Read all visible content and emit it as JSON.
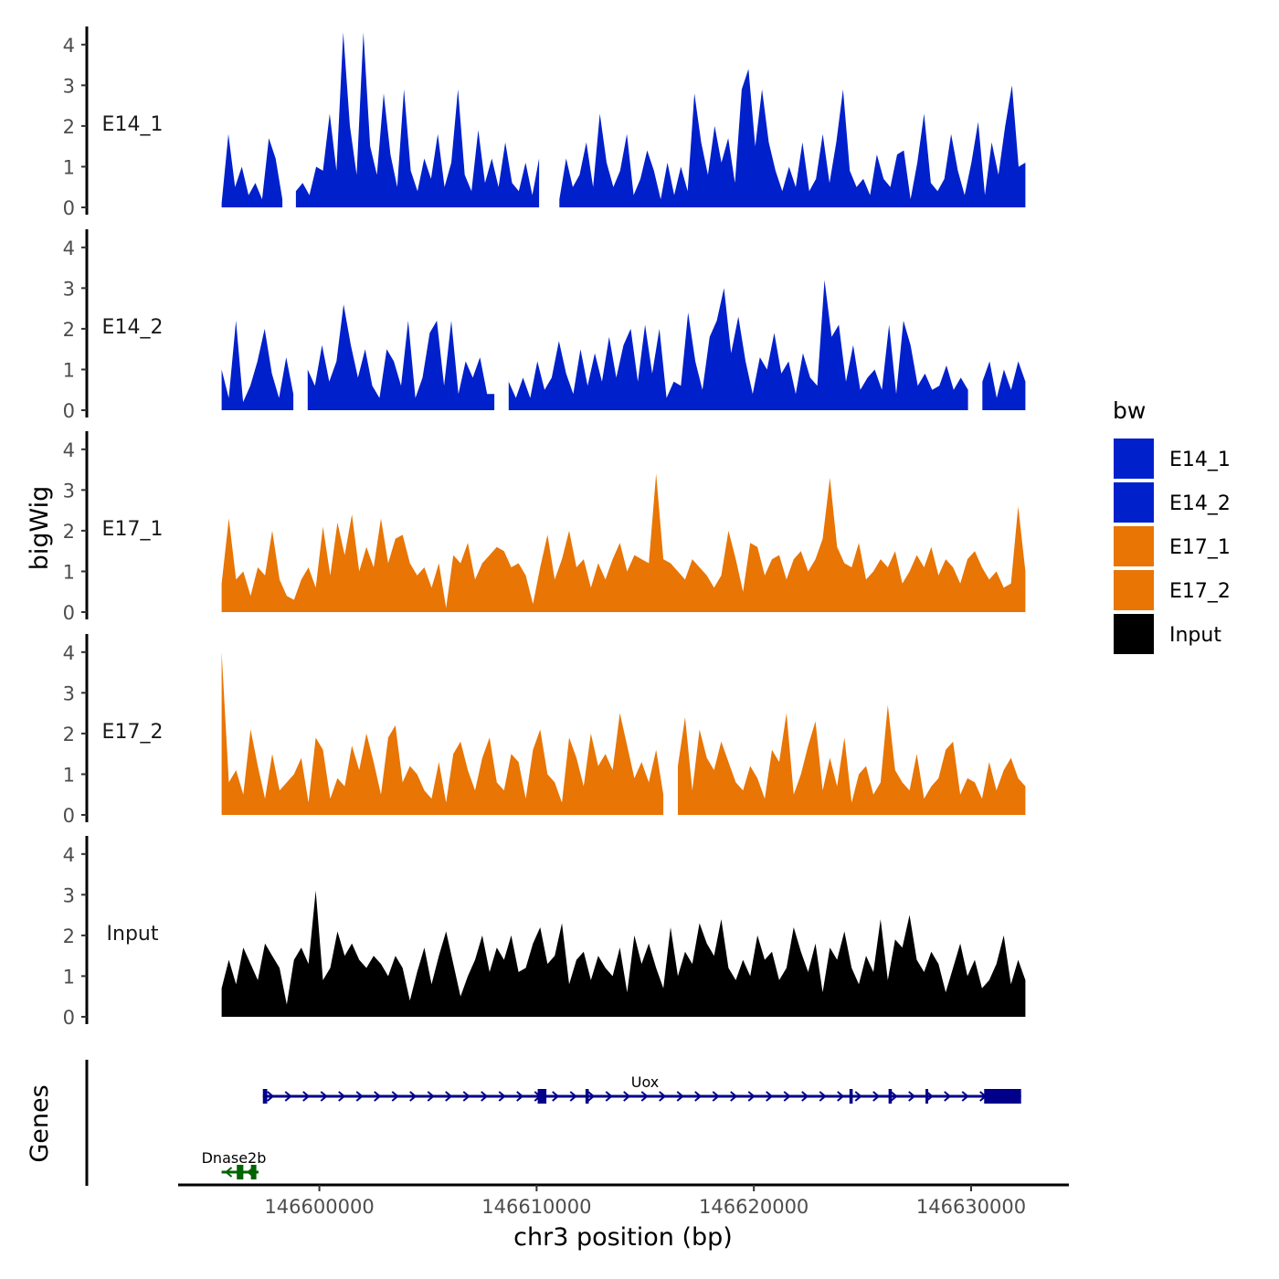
{
  "chart_data": {
    "type": "area",
    "chromosome": "chr3",
    "xlabel": "chr3 position (bp)",
    "ylabel": "bigWig",
    "genes_label": "Genes",
    "xlim": [
      146593500,
      146634500
    ],
    "ylim": [
      0,
      4.4
    ],
    "xticks": [
      146600000,
      146610000,
      146620000,
      146630000
    ],
    "xtick_labels": [
      "146600000",
      "146610000",
      "146620000",
      "146630000"
    ],
    "yticks": [
      0,
      1,
      2,
      3,
      4
    ],
    "ytick_labels": [
      "0",
      "1",
      "2",
      "3",
      "4"
    ],
    "data_range": [
      146595500,
      146632500
    ],
    "legend": {
      "title": "bw",
      "entries": [
        {
          "name": "E14_1",
          "color": "#0020CC"
        },
        {
          "name": "E14_2",
          "color": "#0020CC"
        },
        {
          "name": "E17_1",
          "color": "#E87504"
        },
        {
          "name": "E17_2",
          "color": "#E87504"
        },
        {
          "name": "Input",
          "color": "#000000"
        }
      ]
    },
    "series": [
      {
        "name": "E14_1",
        "color": "#0020CC",
        "values": [
          0.1,
          1.8,
          0.5,
          1.0,
          0.3,
          0.6,
          0.2,
          1.7,
          1.2,
          0.2,
          null,
          0.4,
          0.6,
          0.3,
          1.0,
          0.9,
          2.3,
          0.9,
          4.3,
          2.0,
          0.8,
          4.3,
          1.5,
          0.8,
          2.8,
          1.3,
          0.5,
          2.9,
          0.9,
          0.4,
          1.2,
          0.7,
          1.8,
          0.5,
          1.1,
          2.9,
          0.8,
          0.4,
          1.9,
          0.6,
          1.2,
          0.5,
          1.6,
          0.6,
          0.4,
          1.1,
          0.3,
          1.2,
          null,
          null,
          0.2,
          1.2,
          0.5,
          0.8,
          1.6,
          0.5,
          2.3,
          1.1,
          0.5,
          0.9,
          1.8,
          0.3,
          0.7,
          1.4,
          0.9,
          0.2,
          1.1,
          0.3,
          1.0,
          0.4,
          2.8,
          1.6,
          0.8,
          2.0,
          1.1,
          1.7,
          0.6,
          2.9,
          3.4,
          1.5,
          2.9,
          1.6,
          0.9,
          0.4,
          1.0,
          0.5,
          1.6,
          0.4,
          0.7,
          1.8,
          0.6,
          1.6,
          2.9,
          0.9,
          0.5,
          0.7,
          0.3,
          1.3,
          0.7,
          0.5,
          1.3,
          1.4,
          0.2,
          1.1,
          2.3,
          0.6,
          0.4,
          0.7,
          1.8,
          0.9,
          0.3,
          1.1,
          2.1,
          0.3,
          1.6,
          0.8,
          2.0,
          3.0,
          1.0,
          1.1
        ]
      },
      {
        "name": "E14_2",
        "color": "#0020CC",
        "values": [
          1.0,
          0.3,
          2.2,
          0.2,
          0.6,
          1.2,
          2.0,
          0.9,
          0.3,
          1.3,
          0.4,
          null,
          1.0,
          0.6,
          1.6,
          0.7,
          1.2,
          2.6,
          1.6,
          0.8,
          1.5,
          0.6,
          0.3,
          1.5,
          1.2,
          0.6,
          2.2,
          0.3,
          0.8,
          1.9,
          2.2,
          0.6,
          2.2,
          0.4,
          1.2,
          0.8,
          1.3,
          0.4,
          0.4,
          null,
          0.7,
          0.3,
          0.8,
          0.3,
          1.2,
          0.5,
          0.8,
          1.7,
          0.9,
          0.4,
          1.5,
          0.6,
          1.4,
          0.7,
          1.8,
          0.8,
          1.6,
          2.0,
          0.7,
          2.1,
          0.9,
          2.0,
          0.3,
          0.7,
          0.6,
          2.4,
          1.2,
          0.5,
          1.8,
          2.2,
          3.0,
          1.4,
          2.3,
          1.2,
          0.4,
          1.3,
          1.0,
          1.9,
          0.9,
          1.2,
          0.4,
          1.4,
          0.8,
          0.6,
          3.2,
          1.8,
          2.1,
          0.7,
          1.6,
          0.5,
          0.8,
          1.0,
          0.5,
          2.1,
          0.4,
          2.2,
          1.6,
          0.6,
          0.9,
          0.5,
          0.6,
          1.1,
          0.5,
          0.8,
          0.5,
          null,
          0.7,
          1.2,
          0.3,
          1.0,
          0.5,
          1.2,
          0.7
        ]
      },
      {
        "name": "E17_1",
        "color": "#E87504",
        "values": [
          0.7,
          2.3,
          0.8,
          1.0,
          0.4,
          1.1,
          0.9,
          2.0,
          0.8,
          0.4,
          0.3,
          0.8,
          1.1,
          0.6,
          2.1,
          0.9,
          2.2,
          1.4,
          2.4,
          1.0,
          1.6,
          1.1,
          2.3,
          1.2,
          1.8,
          1.9,
          1.2,
          0.9,
          1.1,
          0.6,
          1.2,
          0.1,
          1.4,
          1.2,
          1.7,
          0.8,
          1.2,
          1.4,
          1.6,
          1.5,
          1.1,
          1.2,
          0.9,
          0.2,
          1.1,
          1.9,
          0.8,
          1.3,
          2.0,
          1.1,
          1.3,
          0.6,
          1.2,
          0.8,
          1.3,
          1.7,
          1.0,
          1.4,
          1.3,
          1.2,
          3.4,
          1.3,
          1.2,
          1.0,
          0.8,
          1.3,
          1.1,
          0.9,
          0.6,
          0.9,
          2.0,
          1.3,
          0.5,
          1.7,
          1.6,
          0.9,
          1.3,
          1.4,
          0.8,
          1.3,
          1.5,
          1.0,
          1.3,
          1.8,
          3.3,
          1.6,
          1.2,
          1.1,
          1.7,
          0.8,
          1.0,
          1.3,
          1.1,
          1.5,
          0.7,
          1.0,
          1.4,
          1.1,
          1.6,
          0.9,
          1.3,
          1.1,
          0.7,
          1.3,
          1.5,
          1.1,
          0.8,
          1.0,
          0.6,
          0.7,
          2.6,
          1.0
        ]
      },
      {
        "name": "E17_2",
        "color": "#E87504",
        "values": [
          4.0,
          0.8,
          1.1,
          0.5,
          2.1,
          1.2,
          0.4,
          1.5,
          0.6,
          0.8,
          1.0,
          1.4,
          0.3,
          1.9,
          1.6,
          0.4,
          0.9,
          0.7,
          1.7,
          1.1,
          2.0,
          1.3,
          0.5,
          1.9,
          2.2,
          0.8,
          1.2,
          1.0,
          0.6,
          0.4,
          1.3,
          0.3,
          1.5,
          1.8,
          1.1,
          0.6,
          1.4,
          1.9,
          0.8,
          0.6,
          1.5,
          1.3,
          0.4,
          1.6,
          2.1,
          1.0,
          0.8,
          0.3,
          1.9,
          1.4,
          0.7,
          2.0,
          1.2,
          1.5,
          1.1,
          2.5,
          1.7,
          0.9,
          1.3,
          0.8,
          1.6,
          0.5,
          null,
          1.2,
          2.4,
          0.6,
          2.1,
          1.4,
          1.1,
          1.8,
          1.3,
          0.8,
          0.6,
          1.2,
          0.9,
          0.4,
          1.6,
          1.3,
          2.5,
          0.5,
          1.0,
          1.7,
          2.3,
          0.6,
          1.4,
          0.7,
          1.9,
          0.3,
          1.0,
          1.2,
          0.5,
          0.8,
          2.7,
          1.1,
          0.8,
          0.6,
          1.5,
          0.4,
          0.7,
          0.9,
          1.6,
          1.8,
          0.5,
          0.9,
          0.8,
          0.4,
          1.3,
          0.6,
          1.1,
          1.4,
          0.9,
          0.7
        ]
      },
      {
        "name": "Input",
        "color": "#000000",
        "values": [
          0.7,
          1.4,
          0.8,
          1.7,
          1.3,
          0.9,
          1.8,
          1.5,
          1.2,
          0.3,
          1.4,
          1.7,
          1.3,
          3.1,
          0.9,
          1.2,
          2.1,
          1.5,
          1.8,
          1.4,
          1.2,
          1.5,
          1.3,
          1.0,
          1.5,
          1.2,
          0.4,
          1.1,
          1.7,
          0.8,
          1.5,
          2.1,
          1.3,
          0.5,
          1.0,
          1.4,
          2.0,
          1.1,
          1.7,
          1.4,
          2.0,
          1.1,
          1.2,
          1.8,
          2.2,
          1.3,
          1.5,
          2.3,
          0.8,
          1.4,
          1.6,
          0.9,
          1.5,
          1.2,
          1.0,
          1.7,
          0.6,
          2.0,
          1.3,
          1.8,
          1.2,
          0.7,
          2.2,
          1.0,
          1.6,
          1.3,
          2.3,
          1.8,
          1.5,
          2.4,
          1.2,
          0.9,
          1.4,
          1.0,
          2.0,
          1.4,
          1.6,
          0.9,
          1.2,
          2.2,
          1.6,
          1.1,
          1.8,
          0.6,
          1.7,
          1.4,
          2.1,
          1.2,
          0.8,
          1.5,
          1.1,
          2.4,
          0.9,
          1.9,
          1.7,
          2.5,
          1.4,
          1.1,
          1.6,
          1.3,
          0.6,
          1.2,
          1.8,
          1.0,
          1.4,
          0.7,
          0.9,
          1.3,
          2.0,
          0.8,
          1.4,
          0.9
        ]
      }
    ],
    "genes": [
      {
        "name": "Uox",
        "strand": "+",
        "color": "#00008B",
        "start": 146597400,
        "end": 146632300,
        "exons": [
          [
            146597400,
            146597600
          ],
          [
            146610050,
            146610450
          ],
          [
            146612250,
            146612400
          ],
          [
            146624400,
            146624550
          ],
          [
            146626200,
            146626350
          ],
          [
            146627900,
            146628000
          ],
          [
            146630600,
            146632300
          ]
        ]
      },
      {
        "name": "Dnase2b",
        "strand": "-",
        "color": "#006400",
        "start": 146595500,
        "end": 146597200,
        "exons": [
          [
            146596200,
            146596500
          ],
          [
            146596850,
            146597100
          ]
        ]
      }
    ]
  }
}
